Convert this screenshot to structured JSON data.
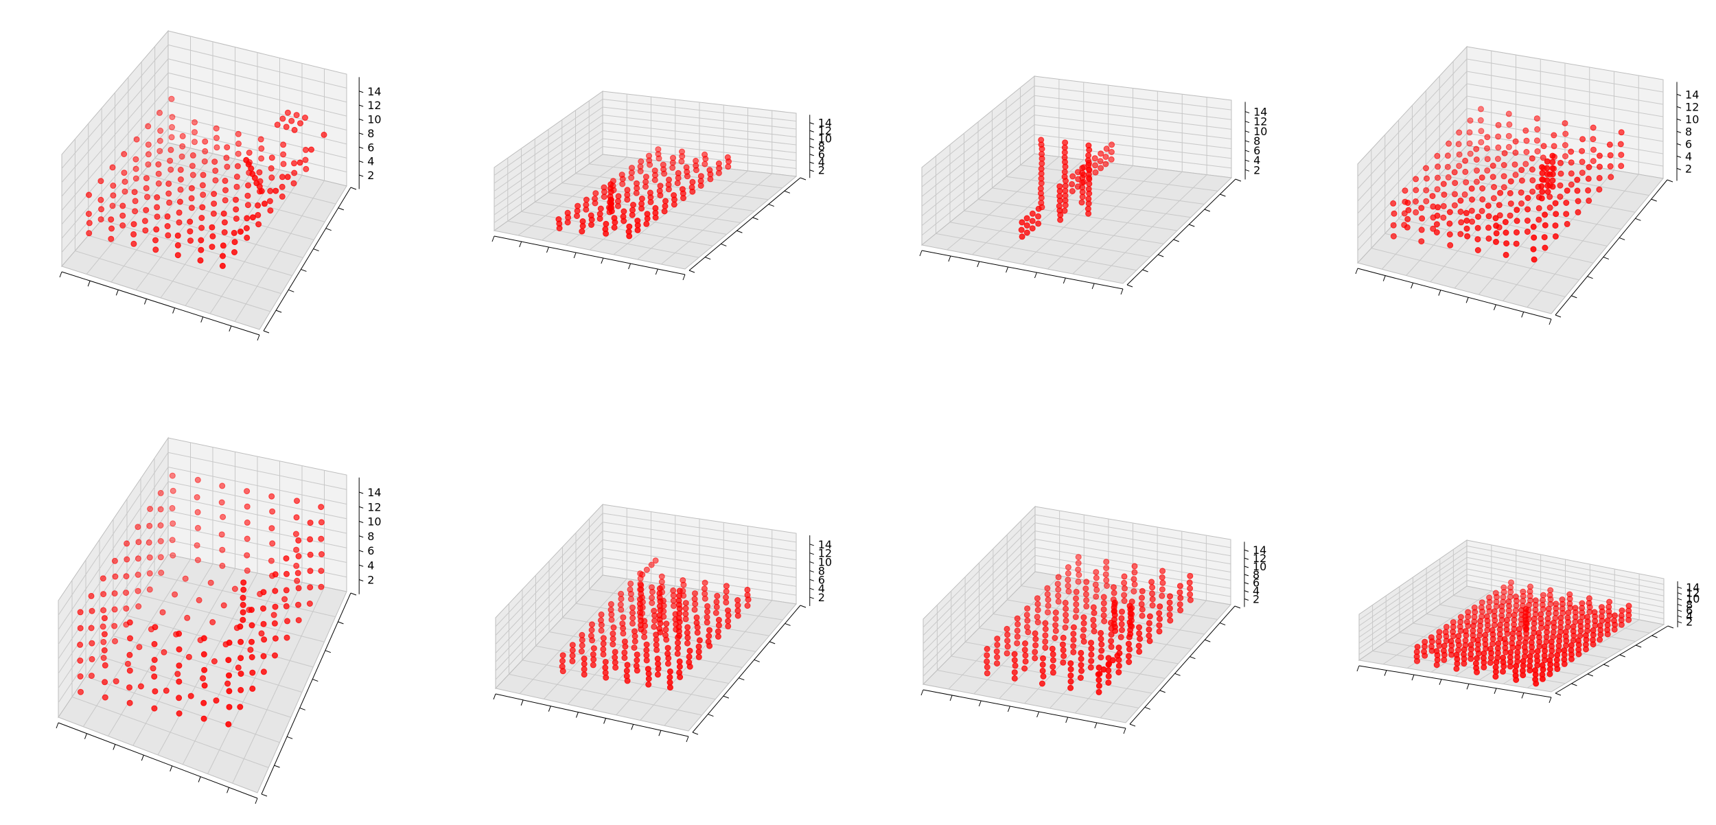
{
  "figure": {
    "background": "#ffffff"
  },
  "style": {
    "marker_color": "#ff0000",
    "pane_left": "#ebebeb",
    "pane_right": "#f2f2f2",
    "pane_floor": "#e6e6e6",
    "grid_color": "#c8c8c8",
    "edge_color": "#bdbdbd",
    "axis_color": "#000000",
    "tick_label_color": "#000000"
  },
  "chart_data": [
    {
      "type": "scatter",
      "projection": "3d",
      "title": "",
      "xlabel": "",
      "ylabel": "",
      "zlabel": "",
      "zticks": [
        "2",
        "4",
        "6",
        "8",
        "10",
        "12",
        "14"
      ],
      "zlim": [
        0,
        16
      ],
      "grid": true,
      "marker": "circle",
      "color": "#ff0000",
      "shape": "voxel block with raised rim and tall stack",
      "x_tick_labels": [],
      "y_tick_labels": []
    },
    {
      "type": "scatter",
      "projection": "3d",
      "title": "",
      "xlabel": "",
      "ylabel": "",
      "zlabel": "",
      "zticks": [
        "2",
        "4",
        "6",
        "8",
        "10",
        "12",
        "14"
      ],
      "zlim": [
        0,
        16
      ],
      "grid": true,
      "marker": "circle",
      "color": "#ff0000",
      "shape": "low elongated voxel body",
      "x_tick_labels": [],
      "y_tick_labels": []
    },
    {
      "type": "scatter",
      "projection": "3d",
      "title": "",
      "xlabel": "",
      "ylabel": "",
      "zlabel": "",
      "zticks": [
        "2",
        "4",
        "6",
        "8",
        "10",
        "12",
        "14"
      ],
      "zlim": [
        0,
        16
      ],
      "grid": true,
      "marker": "circle",
      "color": "#ff0000",
      "shape": "central vertical column with side wings",
      "x_tick_labels": [],
      "y_tick_labels": []
    },
    {
      "type": "scatter",
      "projection": "3d",
      "title": "",
      "xlabel": "",
      "ylabel": "",
      "zlabel": "",
      "zticks": [
        "2",
        "4",
        "6",
        "8",
        "10",
        "12",
        "14"
      ],
      "zlim": [
        0,
        16
      ],
      "grid": true,
      "marker": "circle",
      "color": "#ff0000",
      "shape": "large voxel block with upper tower",
      "x_tick_labels": [],
      "y_tick_labels": []
    },
    {
      "type": "scatter",
      "projection": "3d",
      "title": "",
      "xlabel": "",
      "ylabel": "",
      "zlabel": "",
      "zticks": [
        "2",
        "4",
        "6",
        "8",
        "10",
        "12",
        "14"
      ],
      "zlim": [
        0,
        16
      ],
      "grid": true,
      "marker": "circle",
      "color": "#ff0000",
      "shape": "tall hollow voxel frame",
      "x_tick_labels": [],
      "y_tick_labels": []
    },
    {
      "type": "scatter",
      "projection": "3d",
      "title": "",
      "xlabel": "",
      "ylabel": "",
      "zlabel": "",
      "zticks": [
        "2",
        "4",
        "6",
        "8",
        "10",
        "12",
        "14"
      ],
      "zlim": [
        0,
        16
      ],
      "grid": true,
      "marker": "circle",
      "color": "#ff0000",
      "shape": "voxel base with vertical fin",
      "x_tick_labels": [],
      "y_tick_labels": []
    },
    {
      "type": "scatter",
      "projection": "3d",
      "title": "",
      "xlabel": "",
      "ylabel": "",
      "zlabel": "",
      "zticks": [
        "2",
        "4",
        "6",
        "8",
        "10",
        "12",
        "14"
      ],
      "zlim": [
        0,
        16
      ],
      "grid": true,
      "marker": "circle",
      "color": "#ff0000",
      "shape": "wide voxel slab with raised tail",
      "x_tick_labels": [],
      "y_tick_labels": []
    },
    {
      "type": "scatter",
      "projection": "3d",
      "title": "",
      "xlabel": "",
      "ylabel": "",
      "zlabel": "",
      "zticks": [
        "2",
        "4",
        "6",
        "8",
        "10",
        "12",
        "14"
      ],
      "zlim": [
        0,
        16
      ],
      "grid": true,
      "marker": "circle",
      "color": "#ff0000",
      "shape": "flat dense voxel cluster",
      "x_tick_labels": [],
      "y_tick_labels": []
    }
  ]
}
